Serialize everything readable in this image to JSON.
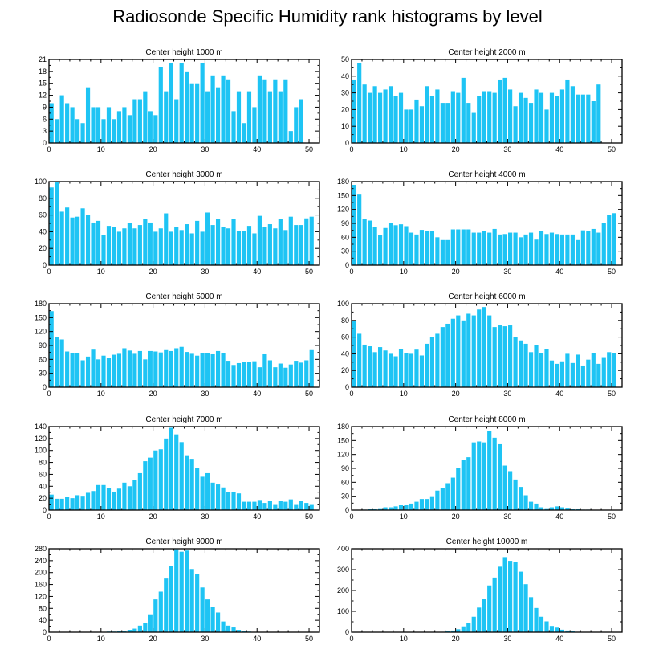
{
  "title": "Radiosonde Specific Humidity rank histograms by level",
  "bar_color": "#1ec4f4",
  "chart_data": [
    {
      "type": "bar",
      "title": "Center height 1000 m",
      "xlabel": "",
      "ylabel": "",
      "xlim": [
        0,
        52
      ],
      "ylim": [
        0,
        21
      ],
      "xticks": [
        0,
        10,
        20,
        30,
        40,
        50
      ],
      "yticks": [
        0,
        3,
        6,
        9,
        12,
        15,
        18,
        21
      ],
      "values": [
        10,
        6,
        12,
        10,
        9,
        6,
        5,
        14,
        9,
        9,
        6,
        9,
        6,
        8,
        9,
        7,
        11,
        11,
        13,
        8,
        7,
        19,
        13,
        20,
        11,
        20,
        18,
        15,
        15,
        20,
        13,
        17,
        14,
        17,
        16,
        8,
        13,
        5,
        13,
        9,
        17,
        16,
        13,
        16,
        13,
        16,
        3,
        9,
        11
      ]
    },
    {
      "type": "bar",
      "title": "Center height 2000 m",
      "xlabel": "",
      "ylabel": "",
      "xlim": [
        0,
        52
      ],
      "ylim": [
        0,
        50
      ],
      "xticks": [
        0,
        10,
        20,
        30,
        40,
        50
      ],
      "yticks": [
        0,
        10,
        20,
        30,
        40,
        50
      ],
      "values": [
        38,
        48,
        35,
        30,
        34,
        30,
        32,
        34,
        28,
        30,
        20,
        20,
        26,
        22,
        34,
        28,
        32,
        24,
        24,
        31,
        30,
        39,
        24,
        18,
        28,
        31,
        31,
        30,
        38,
        39,
        32,
        22,
        30,
        27,
        24,
        32,
        30,
        20,
        30,
        28,
        32,
        38,
        34,
        29,
        29,
        29,
        25,
        35
      ]
    },
    {
      "type": "bar",
      "title": "Center height 3000 m",
      "xlabel": "",
      "ylabel": "",
      "xlim": [
        0,
        52
      ],
      "ylim": [
        0,
        100
      ],
      "xticks": [
        0,
        10,
        20,
        30,
        40,
        50
      ],
      "yticks": [
        0,
        20,
        40,
        60,
        80,
        100
      ],
      "values": [
        93,
        99,
        64,
        69,
        57,
        58,
        68,
        60,
        51,
        53,
        36,
        47,
        46,
        40,
        44,
        50,
        44,
        48,
        55,
        51,
        40,
        44,
        62,
        40,
        46,
        42,
        49,
        38,
        53,
        40,
        63,
        48,
        55,
        46,
        44,
        55,
        41,
        41,
        47,
        38,
        59,
        46,
        49,
        44,
        55,
        42,
        58,
        48,
        48,
        56,
        58
      ]
    },
    {
      "type": "bar",
      "title": "Center height 4000 m",
      "xlabel": "",
      "ylabel": "",
      "xlim": [
        0,
        52
      ],
      "ylim": [
        0,
        180
      ],
      "xticks": [
        0,
        10,
        20,
        30,
        40,
        50
      ],
      "yticks": [
        0,
        30,
        60,
        90,
        120,
        150,
        180
      ],
      "values": [
        173,
        152,
        100,
        96,
        83,
        64,
        80,
        91,
        86,
        88,
        84,
        70,
        66,
        76,
        74,
        74,
        60,
        54,
        54,
        77,
        77,
        77,
        77,
        70,
        70,
        74,
        70,
        78,
        66,
        67,
        70,
        70,
        60,
        66,
        70,
        55,
        73,
        67,
        70,
        67,
        66,
        66,
        66,
        54,
        75,
        74,
        78,
        70,
        90,
        108,
        112
      ]
    },
    {
      "type": "bar",
      "title": "Center height 5000 m",
      "xlabel": "",
      "ylabel": "",
      "xlim": [
        0,
        52
      ],
      "ylim": [
        0,
        180
      ],
      "xticks": [
        0,
        10,
        20,
        30,
        40,
        50
      ],
      "yticks": [
        0,
        30,
        60,
        90,
        120,
        150,
        180
      ],
      "values": [
        164,
        108,
        103,
        77,
        74,
        73,
        58,
        66,
        81,
        60,
        68,
        63,
        70,
        72,
        84,
        79,
        72,
        78,
        60,
        78,
        77,
        75,
        80,
        78,
        84,
        87,
        76,
        72,
        68,
        73,
        73,
        71,
        78,
        73,
        57,
        48,
        52,
        54,
        54,
        56,
        43,
        71,
        58,
        43,
        51,
        42,
        49,
        57,
        53,
        58,
        80
      ]
    },
    {
      "type": "bar",
      "title": "Center height 6000 m",
      "xlabel": "",
      "ylabel": "",
      "xlim": [
        0,
        52
      ],
      "ylim": [
        0,
        100
      ],
      "xticks": [
        0,
        10,
        20,
        30,
        40,
        50
      ],
      "yticks": [
        0,
        20,
        40,
        60,
        80,
        100
      ],
      "values": [
        79,
        64,
        51,
        49,
        42,
        48,
        44,
        40,
        37,
        46,
        41,
        40,
        45,
        38,
        52,
        60,
        64,
        72,
        76,
        82,
        86,
        80,
        88,
        86,
        93,
        96,
        86,
        72,
        74,
        73,
        74,
        60,
        56,
        52,
        42,
        50,
        41,
        46,
        32,
        28,
        31,
        40,
        29,
        39,
        26,
        33,
        41,
        28,
        36,
        42,
        41
      ]
    },
    {
      "type": "bar",
      "title": "Center height 7000 m",
      "xlabel": "",
      "ylabel": "",
      "xlim": [
        0,
        52
      ],
      "ylim": [
        0,
        140
      ],
      "xticks": [
        0,
        10,
        20,
        30,
        40,
        50
      ],
      "yticks": [
        0,
        20,
        40,
        60,
        80,
        100,
        120,
        140
      ],
      "values": [
        26,
        19,
        19,
        22,
        20,
        25,
        24,
        29,
        32,
        42,
        42,
        37,
        31,
        36,
        46,
        40,
        50,
        62,
        82,
        88,
        100,
        102,
        120,
        138,
        127,
        114,
        92,
        86,
        70,
        56,
        62,
        46,
        43,
        38,
        30,
        30,
        28,
        14,
        14,
        14,
        17,
        12,
        16,
        10,
        16,
        14,
        18,
        10,
        16,
        12,
        10
      ]
    },
    {
      "type": "bar",
      "title": "Center height 8000 m",
      "xlabel": "",
      "ylabel": "",
      "xlim": [
        0,
        52
      ],
      "ylim": [
        0,
        180
      ],
      "xticks": [
        0,
        10,
        20,
        30,
        40,
        50
      ],
      "yticks": [
        0,
        30,
        60,
        90,
        120,
        150,
        180
      ],
      "values": [
        0,
        0,
        1,
        2,
        3,
        4,
        6,
        6,
        8,
        11,
        11,
        14,
        18,
        24,
        24,
        30,
        42,
        48,
        58,
        70,
        90,
        108,
        114,
        146,
        148,
        146,
        170,
        156,
        142,
        96,
        84,
        66,
        50,
        32,
        18,
        14,
        6,
        4,
        6,
        8,
        6,
        5,
        3,
        2,
        1,
        1,
        0,
        0,
        0,
        0,
        0
      ]
    },
    {
      "type": "bar",
      "title": "Center height 9000 m",
      "xlabel": "",
      "ylabel": "",
      "xlim": [
        0,
        52
      ],
      "ylim": [
        0,
        280
      ],
      "xticks": [
        0,
        10,
        20,
        30,
        40,
        50
      ],
      "yticks": [
        0,
        40,
        80,
        120,
        160,
        200,
        240,
        280
      ],
      "values": [
        0,
        0,
        0,
        0,
        0,
        0,
        0,
        0,
        0,
        1,
        1,
        2,
        2,
        3,
        4,
        8,
        12,
        22,
        30,
        60,
        110,
        136,
        180,
        222,
        278,
        270,
        274,
        212,
        194,
        150,
        110,
        86,
        66,
        36,
        22,
        16,
        8,
        4,
        2,
        1,
        1,
        1,
        0,
        0,
        0,
        0,
        0,
        0,
        0,
        0,
        0
      ]
    },
    {
      "type": "bar",
      "title": "Center height 10000 m",
      "xlabel": "",
      "ylabel": "",
      "xlim": [
        0,
        52
      ],
      "ylim": [
        0,
        400
      ],
      "xticks": [
        0,
        10,
        20,
        30,
        40,
        50
      ],
      "yticks": [
        0,
        100,
        200,
        300,
        400
      ],
      "values": [
        0,
        0,
        0,
        0,
        0,
        0,
        0,
        0,
        0,
        0,
        0,
        0,
        0,
        0,
        0,
        0,
        0,
        2,
        4,
        8,
        14,
        28,
        46,
        74,
        118,
        160,
        224,
        262,
        314,
        360,
        342,
        338,
        290,
        230,
        168,
        116,
        74,
        52,
        30,
        22,
        12,
        8,
        4,
        2,
        1,
        1,
        0,
        0,
        0,
        0,
        0
      ]
    }
  ]
}
